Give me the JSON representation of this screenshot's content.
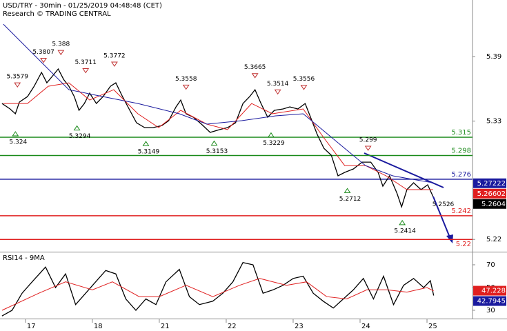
{
  "chart_data": [
    {
      "type": "line",
      "title": "USD/TRY - 30min - 01/25/2019 04:48:48 (CET)",
      "subtitle": "Research © TRADING CENTRAL",
      "xlim": [
        -0.38,
        6.68
      ],
      "ylim": [
        5.2086,
        5.4426
      ],
      "yticks": [
        5.22,
        5.33,
        5.39
      ],
      "series": [
        {
          "color": "#000000",
          "x": [
            -0.35,
            -0.23,
            -0.15,
            -0.09,
            0.03,
            0.13,
            0.24,
            0.32,
            0.39,
            0.49,
            0.57,
            0.65,
            0.73,
            0.8,
            0.88,
            0.96,
            1.06,
            1.16,
            1.27,
            1.35,
            1.45,
            1.56,
            1.66,
            1.78,
            1.91,
            2.04,
            2.14,
            2.25,
            2.32,
            2.4,
            2.51,
            2.63,
            2.76,
            2.9,
            3.02,
            3.14,
            3.25,
            3.35,
            3.43,
            3.52,
            3.62,
            3.72,
            3.85,
            3.95,
            4.07,
            4.18,
            4.26,
            4.36,
            4.46,
            4.57,
            4.67,
            4.77,
            4.9,
            5.03,
            5.16,
            5.27,
            5.34,
            5.44,
            5.55,
            5.62,
            5.7,
            5.8,
            5.91,
            6.01,
            6.09
          ],
          "values": [
            5.3464,
            5.3413,
            5.3368,
            5.3477,
            5.3528,
            5.3624,
            5.3753,
            5.3656,
            5.3708,
            5.3785,
            5.3688,
            5.3624,
            5.3528,
            5.34,
            5.3464,
            5.356,
            5.3464,
            5.3528,
            5.3624,
            5.3656,
            5.3528,
            5.34,
            5.3285,
            5.324,
            5.324,
            5.3259,
            5.3304,
            5.3432,
            5.3496,
            5.3368,
            5.3336,
            5.3272,
            5.3195,
            5.3221,
            5.324,
            5.3285,
            5.3464,
            5.3528,
            5.3592,
            5.3464,
            5.3336,
            5.34,
            5.3413,
            5.3432,
            5.3413,
            5.3464,
            5.3336,
            5.3176,
            5.3047,
            5.2983,
            5.2791,
            5.2823,
            5.2855,
            5.2919,
            5.2919,
            5.2823,
            5.2695,
            5.2791,
            5.2631,
            5.2503,
            5.2663,
            5.2727,
            5.2663,
            5.2708,
            5.2599
          ]
        },
        {
          "color": "#e02020",
          "x": [
            -0.33,
            0.03,
            0.34,
            0.65,
            0.96,
            1.32,
            1.68,
            1.99,
            2.32,
            2.71,
            3.02,
            3.38,
            3.69,
            4.15,
            4.46,
            4.77,
            5.08,
            5.39,
            5.7,
            6.09
          ],
          "values": [
            5.3464,
            5.3464,
            5.3624,
            5.3656,
            5.3496,
            5.3592,
            5.3368,
            5.324,
            5.34,
            5.3272,
            5.3221,
            5.3464,
            5.3368,
            5.3413,
            5.3144,
            5.2887,
            5.2887,
            5.2791,
            5.2663,
            5.2663
          ]
        },
        {
          "color": "#1a1a9e",
          "x": [
            -0.33,
            0.65,
            1.16,
            1.68,
            2.3,
            2.71,
            3.23,
            3.74,
            4.15,
            4.46,
            4.77,
            5.08,
            5.49,
            5.91,
            6.09
          ],
          "values": [
            5.4201,
            5.3592,
            5.3528,
            5.3464,
            5.3368,
            5.3272,
            5.3304,
            5.3349,
            5.3368,
            5.3208,
            5.3047,
            5.2887,
            5.2791,
            5.2746,
            5.2727
          ]
        }
      ],
      "levels": [
        {
          "value": 5.315,
          "color": "#1a8a1a"
        },
        {
          "value": 5.298,
          "color": "#1a8a1a"
        },
        {
          "value": 5.276,
          "color": "#1a1a9e"
        },
        {
          "value": 5.242,
          "color": "#e02020"
        },
        {
          "value": 5.22,
          "color": "#e02020"
        }
      ],
      "highs": [
        {
          "x": -0.12,
          "value": 5.3579
        },
        {
          "x": 0.27,
          "value": 5.3807
        },
        {
          "x": 0.53,
          "value": 5.388
        },
        {
          "x": 0.9,
          "value": 5.3711
        },
        {
          "x": 1.33,
          "value": 5.3772
        },
        {
          "x": 2.4,
          "value": 5.3558
        },
        {
          "x": 3.43,
          "value": 5.3665
        },
        {
          "x": 3.77,
          "value": 5.3514
        },
        {
          "x": 4.16,
          "value": 5.3556
        },
        {
          "x": 5.12,
          "value": 5.299
        }
      ],
      "lows": [
        {
          "x": -0.15,
          "value": 5.324
        },
        {
          "x": 0.77,
          "value": 5.3294
        },
        {
          "x": 1.8,
          "value": 5.3149
        },
        {
          "x": 2.82,
          "value": 5.3153
        },
        {
          "x": 3.67,
          "value": 5.3229
        },
        {
          "x": 4.81,
          "value": 5.2712
        },
        {
          "x": 5.63,
          "value": 5.2414
        }
      ],
      "annotations": [
        {
          "x": 6.08,
          "value": 5.2526
        }
      ],
      "last_values": [
        {
          "value": 5.27222,
          "color": "#1a1a9e"
        },
        {
          "value": 5.26602,
          "color": "#e02020"
        },
        {
          "value": 5.2604,
          "color": "#000000"
        }
      ]
    },
    {
      "type": "line",
      "title": "RSI14 - 9MA",
      "xlim": [
        -0.38,
        6.68
      ],
      "xticks": [
        {
          "value": 0,
          "label": "17"
        },
        {
          "value": 1,
          "label": "18"
        },
        {
          "value": 2,
          "label": "21"
        },
        {
          "value": 3,
          "label": "22"
        },
        {
          "value": 4,
          "label": "23"
        },
        {
          "value": 5,
          "label": "24"
        },
        {
          "value": 6,
          "label": "25"
        }
      ],
      "ylim": [
        22.7,
        80.9
      ],
      "yticks": [
        30,
        50,
        70
      ],
      "series": [
        {
          "color": "#000000",
          "x": [
            -0.35,
            -0.2,
            -0.05,
            0.1,
            0.3,
            0.45,
            0.6,
            0.75,
            0.9,
            1.05,
            1.2,
            1.35,
            1.5,
            1.65,
            1.8,
            1.95,
            2.1,
            2.3,
            2.45,
            2.6,
            2.8,
            2.95,
            3.1,
            3.25,
            3.4,
            3.55,
            3.7,
            3.85,
            4.0,
            4.15,
            4.3,
            4.45,
            4.6,
            4.75,
            4.9,
            5.05,
            5.2,
            5.35,
            5.5,
            5.65,
            5.8,
            5.95,
            6.05,
            6.1
          ],
          "values": [
            25,
            30,
            45,
            55,
            68,
            50,
            62,
            35,
            45,
            55,
            65,
            62,
            40,
            30,
            40,
            35,
            55,
            66,
            42,
            35,
            38,
            45,
            55,
            72,
            70,
            45,
            48,
            52,
            58,
            60,
            45,
            38,
            32,
            40,
            48,
            58,
            40,
            60,
            35,
            52,
            58,
            50,
            56,
            43
          ]
        },
        {
          "color": "#e02020",
          "x": [
            -0.35,
            0.2,
            0.6,
            1.0,
            1.3,
            1.7,
            2.0,
            2.4,
            2.8,
            3.2,
            3.5,
            3.9,
            4.2,
            4.5,
            4.8,
            5.1,
            5.4,
            5.7,
            6.0,
            6.1
          ],
          "values": [
            30,
            45,
            55,
            48,
            55,
            42,
            42,
            52,
            42,
            52,
            58,
            52,
            55,
            42,
            40,
            48,
            48,
            46,
            50,
            47
          ]
        }
      ],
      "last_values": [
        {
          "value": 47.228,
          "color": "#e02020"
        },
        {
          "value": 42.7945,
          "color": "#1a1a9e"
        }
      ]
    }
  ]
}
